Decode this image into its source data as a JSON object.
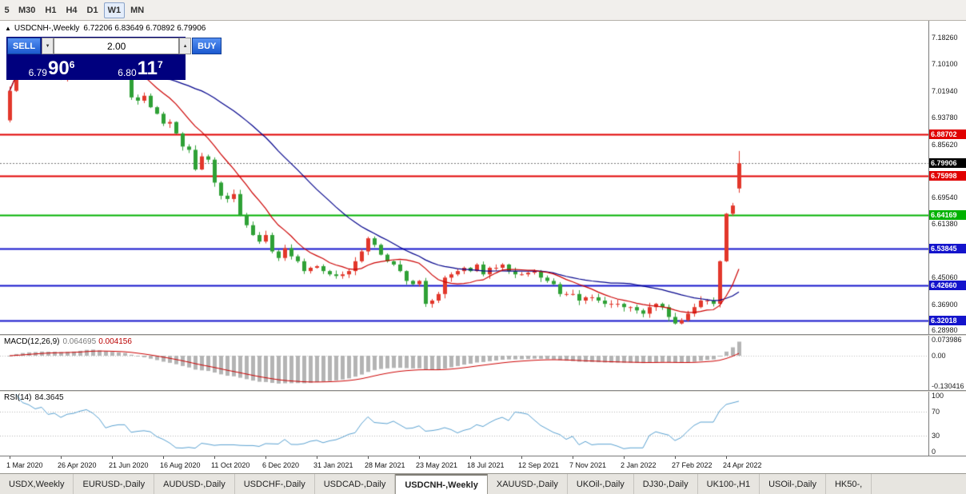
{
  "toolbar": {
    "timeframes": [
      {
        "label": "5",
        "selected": false
      },
      {
        "label": "M30",
        "selected": false
      },
      {
        "label": "H1",
        "selected": false
      },
      {
        "label": "H4",
        "selected": false
      },
      {
        "label": "D1",
        "selected": false
      },
      {
        "label": "W1",
        "selected": true
      },
      {
        "label": "MN",
        "selected": false
      }
    ]
  },
  "chart": {
    "collapse_icon": "▲",
    "title": "USDCNH-,Weekly",
    "ohlc": "6.72206 6.83649 6.70892 6.79906"
  },
  "trade_panel": {
    "sell_label": "SELL",
    "buy_label": "BUY",
    "volume": "2.00",
    "volume_down_icon": "▼",
    "volume_up_icon": "▲",
    "sell_price": {
      "main": "6.79",
      "pips": "90",
      "frac": "6"
    },
    "buy_price": {
      "main": "6.80",
      "pips": "11",
      "frac": "7"
    }
  },
  "price_axis": {
    "labels": [
      {
        "price": 7.1826,
        "label": "7.18260"
      },
      {
        "price": 7.101,
        "label": "7.10100"
      },
      {
        "price": 7.0194,
        "label": "7.01940"
      },
      {
        "price": 6.9378,
        "label": "6.93780"
      },
      {
        "price": 6.8562,
        "label": "6.85620"
      },
      {
        "price": 6.6954,
        "label": "6.69540"
      },
      {
        "price": 6.6138,
        "label": "6.61380"
      },
      {
        "price": 6.4506,
        "label": "6.45060"
      },
      {
        "price": 6.369,
        "label": "6.36900"
      },
      {
        "price": 6.2898,
        "label": "6.28980"
      }
    ],
    "sr_lines": [
      {
        "price": 6.88702,
        "label": "6.88702",
        "color": "#e00000"
      },
      {
        "price": 6.75998,
        "label": "6.75998",
        "color": "#e00000"
      },
      {
        "price": 6.64169,
        "label": "6.64169",
        "color": "#00b200"
      },
      {
        "price": 6.53845,
        "label": "6.53845",
        "color": "#1414cc"
      },
      {
        "price": 6.4266,
        "label": "6.42660",
        "color": "#1414cc"
      },
      {
        "price": 6.32018,
        "label": "6.32018",
        "color": "#1414cc"
      }
    ],
    "current": {
      "price": 6.79906,
      "label": "6.79906",
      "color": "#000000"
    }
  },
  "macd": {
    "title": "MACD(12,26,9)",
    "value": "0.064695",
    "signal": "0.004156",
    "fast": 12,
    "slow": 26,
    "smooth": 9,
    "range": [
      -0.148,
      0.086
    ],
    "axis": [
      {
        "v": 0.073986,
        "label": "0.073986"
      },
      {
        "v": 0.0,
        "label": "0.00"
      },
      {
        "v": -0.130416,
        "label": "-0.130416"
      }
    ]
  },
  "rsi": {
    "title": "RSI(14)",
    "value": "84.3645",
    "period": 14,
    "range": [
      -4,
      104
    ],
    "levels": [
      70,
      30
    ],
    "axis": [
      {
        "v": 100,
        "label": "100"
      },
      {
        "v": 70,
        "label": "70"
      },
      {
        "v": 30,
        "label": "30"
      },
      {
        "v": 0,
        "label": "0"
      }
    ]
  },
  "date_axis": {
    "labels": [
      {
        "bar": 0,
        "text": "1 Mar 2020"
      },
      {
        "bar": 8,
        "text": "26 Apr 2020"
      },
      {
        "bar": 16,
        "text": "21 Jun 2020"
      },
      {
        "bar": 24,
        "text": "16 Aug 2020"
      },
      {
        "bar": 32,
        "text": "11 Oct 2020"
      },
      {
        "bar": 40,
        "text": "6 Dec 2020"
      },
      {
        "bar": 48,
        "text": "31 Jan 2021"
      },
      {
        "bar": 56,
        "text": "28 Mar 2021"
      },
      {
        "bar": 64,
        "text": "23 May 2021"
      },
      {
        "bar": 72,
        "text": "18 Jul 2021"
      },
      {
        "bar": 80,
        "text": "12 Sep 2021"
      },
      {
        "bar": 88,
        "text": "7 Nov 2021"
      },
      {
        "bar": 96,
        "text": "2 Jan 2022"
      },
      {
        "bar": 104,
        "text": "27 Feb 2022"
      },
      {
        "bar": 112,
        "text": "24 Apr 2022"
      }
    ]
  },
  "tabs": [
    {
      "label": "USDX,Weekly",
      "selected": false
    },
    {
      "label": "EURUSD-,Daily",
      "selected": false
    },
    {
      "label": "AUDUSD-,Daily",
      "selected": false
    },
    {
      "label": "USDCHF-,Daily",
      "selected": false
    },
    {
      "label": "USDCAD-,Daily",
      "selected": false
    },
    {
      "label": "USDCNH-,Weekly",
      "selected": true
    },
    {
      "label": "XAUUSD-,Daily",
      "selected": false
    },
    {
      "label": "UKOil-,Daily",
      "selected": false
    },
    {
      "label": "DJ30-,Daily",
      "selected": false
    },
    {
      "label": "UK100-,H1",
      "selected": false
    },
    {
      "label": "USOil-,Daily",
      "selected": false
    },
    {
      "label": "HK50-,",
      "selected": false
    }
  ],
  "chart_data": {
    "type": "candlestick",
    "symbol": "USDCNH-",
    "timeframe": "Weekly",
    "bar_pitch": 8,
    "first_open": 6.93,
    "closes": [
      7.02,
      7.11,
      7.095,
      7.09,
      7.08,
      7.095,
      7.07,
      7.08,
      7.06,
      7.09,
      7.1,
      7.13,
      7.155,
      7.13,
      7.08,
      7.07,
      7.075,
      7.08,
      7.07,
      7.0,
      6.99,
      7.005,
      6.97,
      6.95,
      6.92,
      6.925,
      6.89,
      6.85,
      6.84,
      6.78,
      6.82,
      6.81,
      6.74,
      6.7,
      6.69,
      6.705,
      6.64,
      6.61,
      6.58,
      6.56,
      6.58,
      6.53,
      6.51,
      6.54,
      6.515,
      6.5,
      6.47,
      6.48,
      6.485,
      6.47,
      6.46,
      6.455,
      6.46,
      6.47,
      6.5,
      6.53,
      6.57,
      6.55,
      6.52,
      6.5,
      6.49,
      6.47,
      6.44,
      6.43,
      6.44,
      6.37,
      6.38,
      6.4,
      6.45,
      6.46,
      6.47,
      6.48,
      6.47,
      6.49,
      6.46,
      6.48,
      6.48,
      6.49,
      6.47,
      6.46,
      6.46,
      6.465,
      6.47,
      6.45,
      6.44,
      6.43,
      6.4,
      6.4,
      6.4,
      6.38,
      6.39,
      6.39,
      6.38,
      6.37,
      6.37,
      6.37,
      6.36,
      6.36,
      6.35,
      6.34,
      6.36,
      6.37,
      6.36,
      6.33,
      6.31,
      6.32,
      6.34,
      6.36,
      6.38,
      6.38,
      6.37,
      6.5,
      6.645,
      6.67,
      6.79906
    ],
    "last_candle": {
      "open": 6.72206,
      "high": 6.83649,
      "low": 6.70892,
      "close": 6.79906
    },
    "ylim": [
      6.2776,
      7.2338
    ],
    "ma_fast": 10,
    "ma_slow": 30,
    "colors": {
      "up": "#e2372b",
      "down": "#2fa136",
      "ma_fast": "#cc0000",
      "ma_slow": "#00008b",
      "macd_hist": "#b4b4b4",
      "macd_signal": "#cc0000",
      "rsi": "#58a0d0"
    },
    "x_labels": [
      "1 Mar 2020",
      "26 Apr 2020",
      "21 Jun 2020",
      "16 Aug 2020",
      "11 Oct 2020",
      "6 Dec 2020",
      "31 Jan 2021",
      "28 Mar 2021",
      "23 May 2021",
      "18 Jul 2021",
      "12 Sep 2021",
      "7 Nov 2021",
      "2 Jan 2022",
      "27 Feb 2022",
      "24 Apr 2022"
    ]
  }
}
